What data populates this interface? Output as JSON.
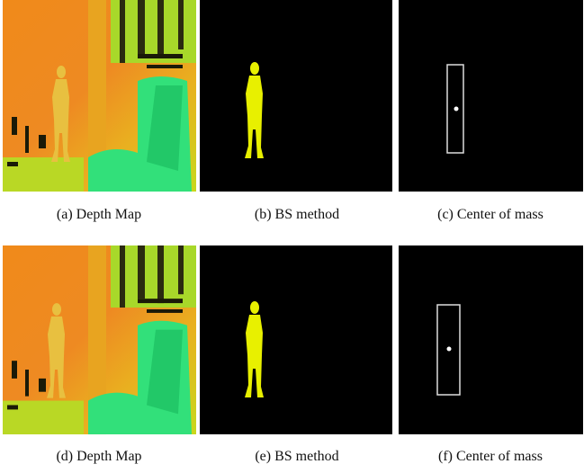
{
  "captions": [
    "(a) Depth Map",
    "(b) BS method",
    "(c) Center of mass",
    "(d) Depth Map",
    "(e) BS method",
    "(f) Center of mass"
  ]
}
